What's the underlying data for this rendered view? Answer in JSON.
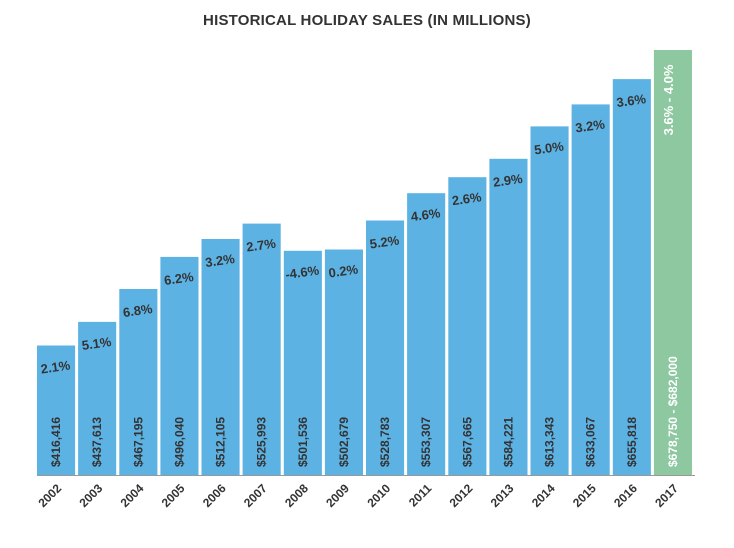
{
  "chart_data": {
    "type": "bar",
    "title": "HISTORICAL HOLIDAY SALES (IN MILLIONS)",
    "categories": [
      "2002",
      "2003",
      "2004",
      "2005",
      "2006",
      "2007",
      "2008",
      "2009",
      "2010",
      "2011",
      "2012",
      "2013",
      "2014",
      "2015",
      "2016",
      "2017"
    ],
    "values": [
      416416,
      437613,
      467195,
      496040,
      512105,
      525993,
      501536,
      502679,
      528783,
      553307,
      567665,
      584221,
      613343,
      633067,
      655818,
      682000
    ],
    "value_labels": [
      "$416,416",
      "$437,613",
      "$467,195",
      "$496,040",
      "$512,105",
      "$525,993",
      "$501,536",
      "$502,679",
      "$528,783",
      "$553,307",
      "$567,665",
      "$584,221",
      "$613,343",
      "$633,067",
      "$655,818",
      "$678,750 - $682,000"
    ],
    "growth_labels": [
      "2.1%",
      "5.1%",
      "6.8%",
      "6.2%",
      "3.2%",
      "2.7%",
      "-4.6%",
      "0.2%",
      "5.2%",
      "4.6%",
      "2.6%",
      "2.9%",
      "5.0%",
      "3.2%",
      "3.6%",
      "3.6% - 4.0%"
    ],
    "forecast_index": 15,
    "ylim": [
      300000,
      682000
    ],
    "xlabel": "",
    "ylabel": "",
    "grid": false,
    "colors": {
      "bar": "#5DB2E4",
      "forecast": "#8DC8A0",
      "axis": "#999999",
      "label": "#333333",
      "forecast_label": "#ffffff"
    }
  }
}
